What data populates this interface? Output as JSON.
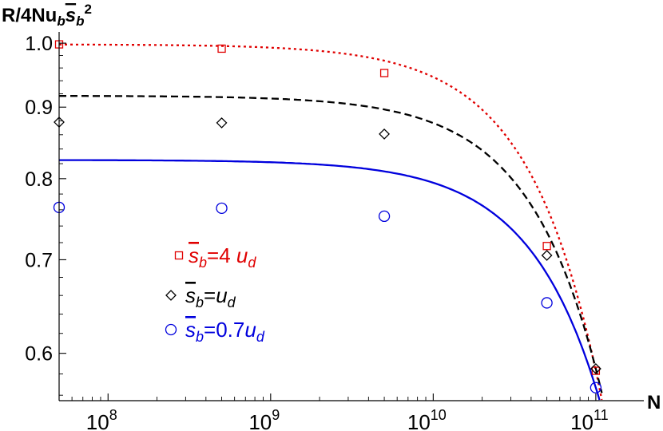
{
  "chart_data": {
    "type": "scatter",
    "title": "",
    "ylabel": {
      "prefix": "R/4Nu",
      "sub": "b",
      "var": "s",
      "var_sub": "b",
      "sup": "2"
    },
    "xlabel": "N",
    "x_scale": "log",
    "y_scale": "log",
    "xlim": [
      50000000.0,
      120000000000.0
    ],
    "ylim": [
      0.555,
      1.012
    ],
    "x_ticks": [
      {
        "value": 100000000.0,
        "base": "10",
        "exp": "8"
      },
      {
        "value": 1000000000.0,
        "base": "10",
        "exp": "9"
      },
      {
        "value": 10000000000.0,
        "base": "10",
        "exp": "10"
      },
      {
        "value": 100000000000.0,
        "base": "10",
        "exp": "11"
      }
    ],
    "y_ticks": [
      {
        "value": 0.6,
        "label": "0.6"
      },
      {
        "value": 0.7,
        "label": "0.7"
      },
      {
        "value": 0.8,
        "label": "0.8"
      },
      {
        "value": 0.9,
        "label": "0.9"
      },
      {
        "value": 1.0,
        "label": "1.0"
      }
    ],
    "series": [
      {
        "legend": {
          "var": "s",
          "sub": "b",
          "rhs": "=4 ",
          "unit": "u",
          "unit_sub": "d"
        },
        "color": "#e00000",
        "marker": "square",
        "line_style": "dotted",
        "curve_plateau": 0.998,
        "points": [
          {
            "x": 50000000.0,
            "y": 0.998
          },
          {
            "x": 500000000.0,
            "y": 0.991
          },
          {
            "x": 5000000000.0,
            "y": 0.952
          },
          {
            "x": 50000000000.0,
            "y": 0.716
          },
          {
            "x": 100000000000.0,
            "y": 0.583
          }
        ]
      },
      {
        "legend": {
          "var": "s",
          "sub": "b",
          "rhs": "=",
          "unit": "u",
          "unit_sub": "d"
        },
        "color": "#000000",
        "marker": "diamond",
        "line_style": "dashed",
        "curve_plateau": 0.917,
        "points": [
          {
            "x": 50000000.0,
            "y": 0.878
          },
          {
            "x": 500000000.0,
            "y": 0.877
          },
          {
            "x": 5000000000.0,
            "y": 0.861
          },
          {
            "x": 50000000000.0,
            "y": 0.705
          },
          {
            "x": 100000000000.0,
            "y": 0.585
          }
        ]
      },
      {
        "legend": {
          "var": "s",
          "sub": "b",
          "rhs": "=0.7",
          "unit": "u",
          "unit_sub": "d"
        },
        "color": "#0000dd",
        "marker": "circle",
        "line_style": "solid",
        "curve_plateau": 0.825,
        "points": [
          {
            "x": 50000000.0,
            "y": 0.763
          },
          {
            "x": 500000000.0,
            "y": 0.762
          },
          {
            "x": 5000000000.0,
            "y": 0.752
          },
          {
            "x": 50000000000.0,
            "y": 0.652
          },
          {
            "x": 100000000000.0,
            "y": 0.567
          }
        ]
      }
    ]
  }
}
